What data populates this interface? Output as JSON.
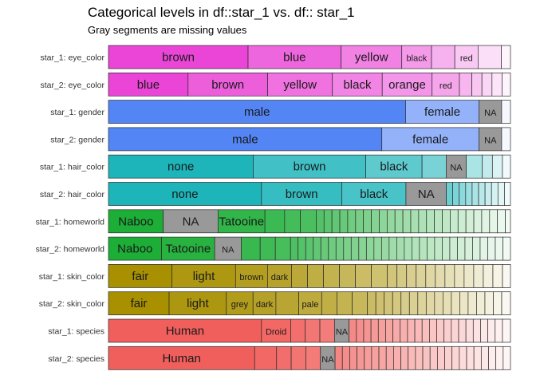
{
  "chart_data": {
    "type": "bar",
    "title": "Categorical levels in df::star_1 vs. df:: star_1",
    "subtitle": "Gray segments are missing values",
    "xlim": [
      0,
      1
    ],
    "rows": [
      {
        "label": "star_1: eye_color",
        "color": "#EA45D6",
        "segments": [
          {
            "label": "brown",
            "value": 0.366
          },
          {
            "label": "blue",
            "value": 0.244
          },
          {
            "label": "yellow",
            "value": 0.159
          },
          {
            "label": "black",
            "value": 0.078
          },
          {
            "label": "",
            "value": 0.061
          },
          {
            "label": "red",
            "value": 0.061
          },
          {
            "label": "",
            "value": 0.061
          },
          {
            "label": "",
            "value": 0.024
          }
        ]
      },
      {
        "label": "star_2: eye_color",
        "color": "#EA45D6",
        "segments": [
          {
            "label": "blue",
            "value": 0.198
          },
          {
            "label": "brown",
            "value": 0.198
          },
          {
            "label": "yellow",
            "value": 0.161
          },
          {
            "label": "black",
            "value": 0.124
          },
          {
            "label": "orange",
            "value": 0.124
          },
          {
            "label": "red",
            "value": 0.068
          },
          {
            "label": "",
            "value": 0.031
          },
          {
            "label": "",
            "value": 0.025
          },
          {
            "label": "",
            "value": 0.025
          },
          {
            "label": "",
            "value": 0.025
          },
          {
            "label": "",
            "value": 0.021
          }
        ]
      },
      {
        "label": "star_1: gender",
        "color": "#5385F5",
        "segments": [
          {
            "label": "male",
            "value": 0.739
          },
          {
            "label": "female",
            "value": 0.183
          },
          {
            "label": "NA",
            "value": 0.056,
            "missing": true
          },
          {
            "label": "",
            "value": 0.022
          }
        ]
      },
      {
        "label": "star_2: gender",
        "color": "#5385F5",
        "segments": [
          {
            "label": "male",
            "value": 0.68
          },
          {
            "label": "female",
            "value": 0.242
          },
          {
            "label": "NA",
            "value": 0.056,
            "missing": true
          },
          {
            "label": "",
            "value": 0.022
          }
        ]
      },
      {
        "label": "star_1: hair_color",
        "color": "#1DB5BA",
        "segments": [
          {
            "label": "none",
            "value": 0.36
          },
          {
            "label": "brown",
            "value": 0.28
          },
          {
            "label": "black",
            "value": 0.14
          },
          {
            "label": "",
            "value": 0.06
          },
          {
            "label": "NA",
            "value": 0.05,
            "missing": true
          },
          {
            "label": "",
            "value": 0.04
          },
          {
            "label": "",
            "value": 0.025
          },
          {
            "label": "",
            "value": 0.025
          },
          {
            "label": "",
            "value": 0.02
          }
        ]
      },
      {
        "label": "star_2: hair_color",
        "color": "#1DB5BA",
        "segments": [
          {
            "label": "none",
            "value": 0.379
          },
          {
            "label": "brown",
            "value": 0.199
          },
          {
            "label": "black",
            "value": 0.159
          },
          {
            "label": "NA",
            "value": 0.1,
            "missing": true
          },
          {
            "label": "",
            "value": 0.016
          },
          {
            "label": "",
            "value": 0.016
          },
          {
            "label": "",
            "value": 0.016
          },
          {
            "label": "",
            "value": 0.016
          },
          {
            "label": "",
            "value": 0.016
          },
          {
            "label": "",
            "value": 0.016
          },
          {
            "label": "",
            "value": 0.016
          },
          {
            "label": "",
            "value": 0.016
          },
          {
            "label": "",
            "value": 0.016
          },
          {
            "label": "",
            "value": 0.015
          }
        ]
      },
      {
        "label": "star_1: homeworld",
        "color": "#1DAE37",
        "segments": [
          {
            "label": "Naboo",
            "value": 0.139
          },
          {
            "label": "NA",
            "value": 0.139,
            "missing": true
          },
          {
            "label": "Tatooine",
            "value": 0.119
          },
          {
            "label": "",
            "value": 0.05
          },
          {
            "label": "",
            "value": 0.04
          },
          {
            "label": "",
            "value": 0.04
          },
          {
            "label": "",
            "value": 0.02
          },
          {
            "label": "",
            "value": 0.02
          },
          {
            "label": "",
            "value": 0.02
          },
          {
            "label": "",
            "value": 0.02
          },
          {
            "label": "",
            "value": 0.02
          },
          {
            "label": "",
            "value": 0.02
          },
          {
            "label": "",
            "value": 0.02
          },
          {
            "label": "",
            "value": 0.02
          },
          {
            "label": "",
            "value": 0.02
          },
          {
            "label": "",
            "value": 0.02
          },
          {
            "label": "",
            "value": 0.02
          },
          {
            "label": "",
            "value": 0.02
          },
          {
            "label": "",
            "value": 0.02
          },
          {
            "label": "",
            "value": 0.02
          },
          {
            "label": "",
            "value": 0.02
          },
          {
            "label": "",
            "value": 0.02
          },
          {
            "label": "",
            "value": 0.02
          },
          {
            "label": "",
            "value": 0.02
          },
          {
            "label": "",
            "value": 0.02
          },
          {
            "label": "",
            "value": 0.02
          },
          {
            "label": "",
            "value": 0.02
          },
          {
            "label": "",
            "value": 0.02
          },
          {
            "label": "",
            "value": 0.02
          },
          {
            "label": "",
            "value": 0.02
          },
          {
            "label": "",
            "value": 0.013
          }
        ]
      },
      {
        "label": "star_2: homeworld",
        "color": "#1DAE37",
        "segments": [
          {
            "label": "Naboo",
            "value": 0.14
          },
          {
            "label": "Tatooine",
            "value": 0.14
          },
          {
            "label": "NA",
            "value": 0.07,
            "missing": true
          },
          {
            "label": "",
            "value": 0.05
          },
          {
            "label": "",
            "value": 0.04
          },
          {
            "label": "",
            "value": 0.04
          },
          {
            "label": "",
            "value": 0.02
          },
          {
            "label": "",
            "value": 0.02
          },
          {
            "label": "",
            "value": 0.02
          },
          {
            "label": "",
            "value": 0.02
          },
          {
            "label": "",
            "value": 0.02
          },
          {
            "label": "",
            "value": 0.02
          },
          {
            "label": "",
            "value": 0.02
          },
          {
            "label": "",
            "value": 0.02
          },
          {
            "label": "",
            "value": 0.02
          },
          {
            "label": "",
            "value": 0.02
          },
          {
            "label": "",
            "value": 0.02
          },
          {
            "label": "",
            "value": 0.02
          },
          {
            "label": "",
            "value": 0.02
          },
          {
            "label": "",
            "value": 0.02
          },
          {
            "label": "",
            "value": 0.02
          },
          {
            "label": "",
            "value": 0.02
          },
          {
            "label": "",
            "value": 0.02
          },
          {
            "label": "",
            "value": 0.02
          },
          {
            "label": "",
            "value": 0.02
          },
          {
            "label": "",
            "value": 0.02
          },
          {
            "label": "",
            "value": 0.02
          },
          {
            "label": "",
            "value": 0.02
          },
          {
            "label": "",
            "value": 0.02
          },
          {
            "label": "",
            "value": 0.02
          },
          {
            "label": "",
            "value": 0.02
          },
          {
            "label": "",
            "value": 0.02
          },
          {
            "label": "",
            "value": 0.02
          },
          {
            "label": "",
            "value": 0.02
          },
          {
            "label": "",
            "value": 0.02
          }
        ]
      },
      {
        "label": "star_1: skin_color",
        "color": "#A89000",
        "segments": [
          {
            "label": "fair",
            "value": 0.159
          },
          {
            "label": "light",
            "value": 0.159
          },
          {
            "label": "brown",
            "value": 0.08
          },
          {
            "label": "dark",
            "value": 0.06
          },
          {
            "label": "",
            "value": 0.04
          },
          {
            "label": "",
            "value": 0.04
          },
          {
            "label": "",
            "value": 0.04
          },
          {
            "label": "",
            "value": 0.04
          },
          {
            "label": "",
            "value": 0.04
          },
          {
            "label": "",
            "value": 0.04
          },
          {
            "label": "",
            "value": 0.024
          },
          {
            "label": "",
            "value": 0.024
          },
          {
            "label": "",
            "value": 0.024
          },
          {
            "label": "",
            "value": 0.024
          },
          {
            "label": "",
            "value": 0.024
          },
          {
            "label": "",
            "value": 0.024
          },
          {
            "label": "",
            "value": 0.024
          },
          {
            "label": "",
            "value": 0.024
          },
          {
            "label": "",
            "value": 0.024
          },
          {
            "label": "",
            "value": 0.024
          },
          {
            "label": "",
            "value": 0.024
          },
          {
            "label": "",
            "value": 0.024
          },
          {
            "label": "",
            "value": 0.02
          }
        ]
      },
      {
        "label": "star_2: skin_color",
        "color": "#A89000",
        "segments": [
          {
            "label": "fair",
            "value": 0.159
          },
          {
            "label": "light",
            "value": 0.15
          },
          {
            "label": "grey",
            "value": 0.07
          },
          {
            "label": "dark",
            "value": 0.06
          },
          {
            "label": "",
            "value": 0.06
          },
          {
            "label": "pale",
            "value": 0.06
          },
          {
            "label": "",
            "value": 0.04
          },
          {
            "label": "",
            "value": 0.04
          },
          {
            "label": "",
            "value": 0.04
          },
          {
            "label": "",
            "value": 0.022
          },
          {
            "label": "",
            "value": 0.022
          },
          {
            "label": "",
            "value": 0.022
          },
          {
            "label": "",
            "value": 0.022
          },
          {
            "label": "",
            "value": 0.022
          },
          {
            "label": "",
            "value": 0.022
          },
          {
            "label": "",
            "value": 0.022
          },
          {
            "label": "",
            "value": 0.022
          },
          {
            "label": "",
            "value": 0.022
          },
          {
            "label": "",
            "value": 0.022
          },
          {
            "label": "",
            "value": 0.022
          },
          {
            "label": "",
            "value": 0.022
          },
          {
            "label": "",
            "value": 0.022
          },
          {
            "label": "",
            "value": 0.022
          },
          {
            "label": "",
            "value": 0.022
          },
          {
            "label": "",
            "value": 0.022
          },
          {
            "label": "",
            "value": 0.023
          }
        ]
      },
      {
        "label": "star_1: species",
        "color": "#F05F5C",
        "segments": [
          {
            "label": "Human",
            "value": 0.419
          },
          {
            "label": "Droid",
            "value": 0.08
          },
          {
            "label": "",
            "value": 0.04
          },
          {
            "label": "",
            "value": 0.04
          },
          {
            "label": "",
            "value": 0.04
          },
          {
            "label": "NA",
            "value": 0.04,
            "missing": true
          },
          {
            "label": "",
            "value": 0.02
          },
          {
            "label": "",
            "value": 0.02
          },
          {
            "label": "",
            "value": 0.02
          },
          {
            "label": "",
            "value": 0.02
          },
          {
            "label": "",
            "value": 0.02
          },
          {
            "label": "",
            "value": 0.02
          },
          {
            "label": "",
            "value": 0.02
          },
          {
            "label": "",
            "value": 0.02
          },
          {
            "label": "",
            "value": 0.02
          },
          {
            "label": "",
            "value": 0.02
          },
          {
            "label": "",
            "value": 0.02
          },
          {
            "label": "",
            "value": 0.02
          },
          {
            "label": "",
            "value": 0.02
          },
          {
            "label": "",
            "value": 0.02
          },
          {
            "label": "",
            "value": 0.02
          },
          {
            "label": "",
            "value": 0.02
          },
          {
            "label": "",
            "value": 0.02
          },
          {
            "label": "",
            "value": 0.02
          },
          {
            "label": "",
            "value": 0.02
          },
          {
            "label": "",
            "value": 0.02
          },
          {
            "label": "",
            "value": 0.02
          },
          {
            "label": "",
            "value": 0.022
          }
        ]
      },
      {
        "label": "star_2: species",
        "color": "#F05F5C",
        "segments": [
          {
            "label": "Human",
            "value": 0.4
          },
          {
            "label": "",
            "value": 0.06
          },
          {
            "label": "",
            "value": 0.04
          },
          {
            "label": "",
            "value": 0.04
          },
          {
            "label": "",
            "value": 0.04
          },
          {
            "label": "NA",
            "value": 0.04,
            "missing": true
          },
          {
            "label": "",
            "value": 0.02
          },
          {
            "label": "",
            "value": 0.02
          },
          {
            "label": "",
            "value": 0.02
          },
          {
            "label": "",
            "value": 0.02
          },
          {
            "label": "",
            "value": 0.02
          },
          {
            "label": "",
            "value": 0.02
          },
          {
            "label": "",
            "value": 0.02
          },
          {
            "label": "",
            "value": 0.02
          },
          {
            "label": "",
            "value": 0.02
          },
          {
            "label": "",
            "value": 0.02
          },
          {
            "label": "",
            "value": 0.02
          },
          {
            "label": "",
            "value": 0.02
          },
          {
            "label": "",
            "value": 0.02
          },
          {
            "label": "",
            "value": 0.02
          },
          {
            "label": "",
            "value": 0.02
          },
          {
            "label": "",
            "value": 0.02
          },
          {
            "label": "",
            "value": 0.02
          },
          {
            "label": "",
            "value": 0.02
          },
          {
            "label": "",
            "value": 0.02
          },
          {
            "label": "",
            "value": 0.02
          },
          {
            "label": "",
            "value": 0.02
          },
          {
            "label": "",
            "value": 0.02
          },
          {
            "label": "",
            "value": 0.02
          },
          {
            "label": "",
            "value": 0.02
          }
        ]
      }
    ],
    "missing_color": "#999999"
  }
}
